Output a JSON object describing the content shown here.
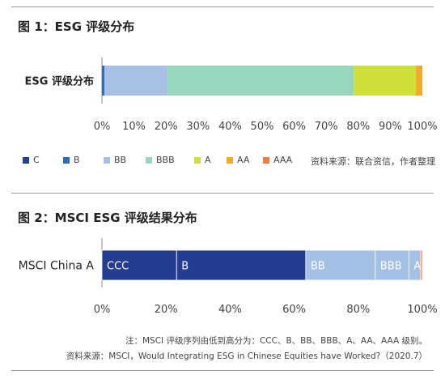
{
  "chart_data": [
    {
      "type": "bar",
      "orientation": "horizontal",
      "stacked": true,
      "title": "图 1：ESG 评级分布",
      "categories": [
        "ESG 评级分布"
      ],
      "series": [
        {
          "name": "C",
          "color": "#233f8f",
          "values": [
            0
          ]
        },
        {
          "name": "B",
          "color": "#2e6db8",
          "values": [
            0.8
          ]
        },
        {
          "name": "BB",
          "color": "#a7c0e3",
          "values": [
            19.7
          ]
        },
        {
          "name": "BBB",
          "color": "#98d7be",
          "values": [
            58.1
          ]
        },
        {
          "name": "A",
          "color": "#cfe03a",
          "values": [
            19.4
          ]
        },
        {
          "name": "AA",
          "color": "#f2ab24",
          "values": [
            2.0
          ]
        },
        {
          "name": "AAA",
          "color": "#ef7e45",
          "values": [
            0
          ]
        }
      ],
      "xlim": [
        0,
        100
      ],
      "xticks": [
        "0%",
        "10%",
        "20%",
        "30%",
        "40%",
        "50%",
        "60%",
        "70%",
        "80%",
        "90%",
        "100%"
      ],
      "legend_position": "bottom",
      "source": "资料来源：联合资信，作者整理"
    },
    {
      "type": "bar",
      "orientation": "horizontal",
      "stacked": true,
      "title": "图 2：MSCI ESG 评级结果分布",
      "categories": [
        "MSCI China A"
      ],
      "series": [
        {
          "name": "CCC",
          "label": "CCC",
          "color": "#253d8e",
          "values": [
            23.3
          ]
        },
        {
          "name": "B",
          "label": "B",
          "color": "#253d8e",
          "values": [
            40.3
          ]
        },
        {
          "name": "BB",
          "label": "BB",
          "color": "#a4c0e4",
          "values": [
            21.7
          ]
        },
        {
          "name": "BBB",
          "label": "BBB",
          "color": "#a4c0e4",
          "values": [
            10.5
          ]
        },
        {
          "name": "A",
          "label": "A",
          "color": "#a4c0e4",
          "values": [
            3.7
          ]
        },
        {
          "name": "AA",
          "label": "",
          "color": "#ef7e45",
          "values": [
            0.5
          ]
        }
      ],
      "xlim": [
        0,
        100
      ],
      "xticks": [
        "0%",
        "20%",
        "40%",
        "60%",
        "80%",
        "100%"
      ],
      "note": "注：MSCI 评级序列由低到高分为：CCC、B、BB、BBB、A、AA、AAA 级别。",
      "source": "资料来源：MSCI，Would Integrating ESG in Chinese Equities have Worked?（2020.7）"
    }
  ]
}
